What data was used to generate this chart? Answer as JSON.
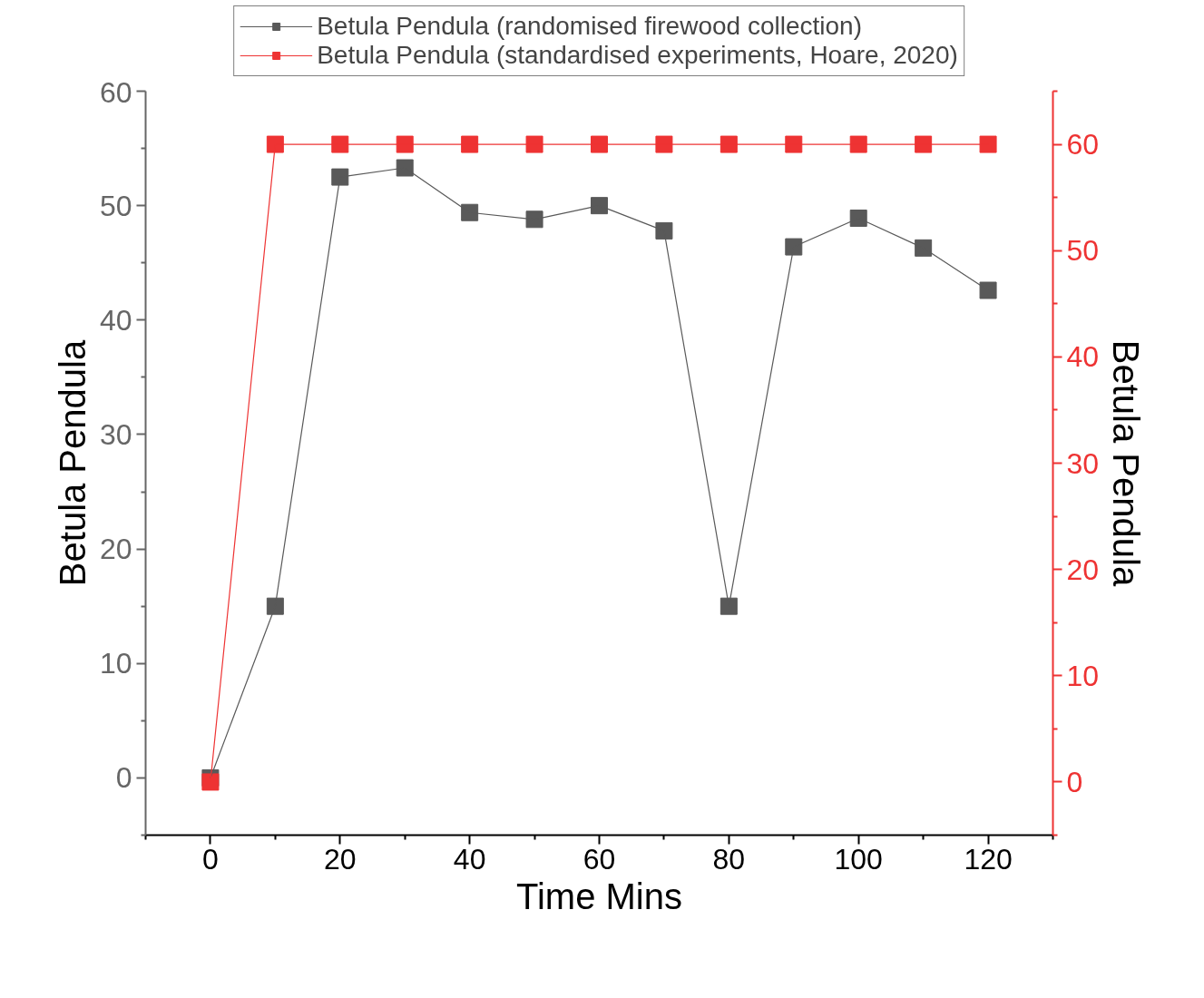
{
  "chart_data": {
    "type": "line",
    "xlabel": "Time Mins",
    "ylabel": "Betula Pendula",
    "y2label": "Betula Pendula",
    "x": [
      0,
      10,
      20,
      30,
      40,
      50,
      60,
      70,
      80,
      90,
      100,
      110,
      120
    ],
    "series": [
      {
        "name": "Betula Pendula (randomised firewood collection)",
        "color": "#595959",
        "values": [
          0,
          15.0,
          52.5,
          53.3,
          49.4,
          48.8,
          50.0,
          47.8,
          15.0,
          46.4,
          48.9,
          46.3,
          42.6
        ]
      },
      {
        "name": "Betula Pendula (standardised experiments, Hoare, 2020)",
        "color": "#ee3333",
        "axis": "y2",
        "values": [
          0,
          60,
          60,
          60,
          60,
          60,
          60,
          60,
          60,
          60,
          60,
          60,
          60
        ]
      }
    ],
    "xlim": [
      -10,
      130
    ],
    "xticks": [
      0,
      20,
      40,
      60,
      80,
      100,
      120
    ],
    "ylim": [
      -5,
      60
    ],
    "yticks": [
      0,
      10,
      20,
      30,
      40,
      50,
      60
    ],
    "y2lim": [
      -5,
      65
    ],
    "y2ticks": [
      0,
      10,
      20,
      30,
      40,
      50,
      60
    ],
    "marker": "square",
    "line_style": "solid",
    "grid": false,
    "legend": "top"
  }
}
